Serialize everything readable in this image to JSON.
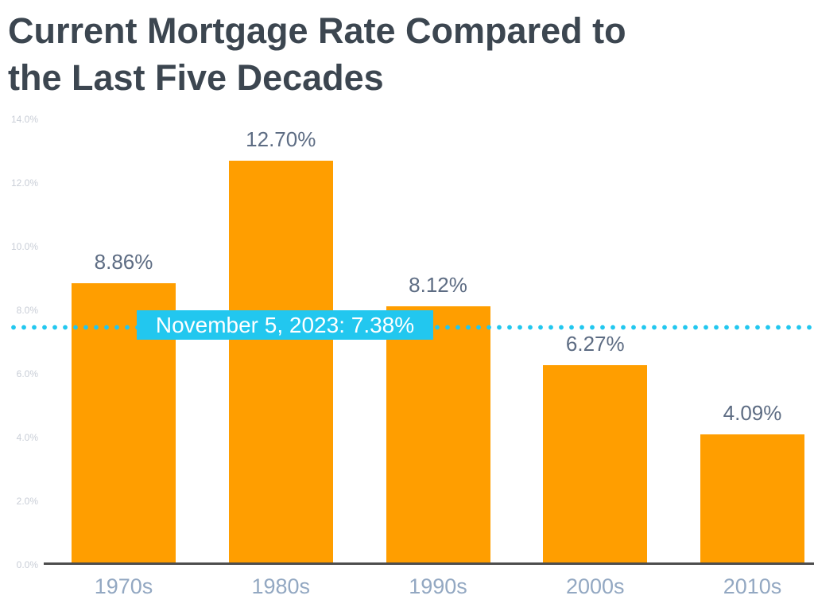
{
  "title": {
    "lines": [
      "Current Mortgage Rate Compared to",
      "the Last Five Decades"
    ]
  },
  "chart_data": {
    "type": "bar",
    "title": "Current Mortgage Rate Compared to the Last Five Decades",
    "categories": [
      "1970s",
      "1980s",
      "1990s",
      "2000s",
      "2010s"
    ],
    "values": [
      8.86,
      12.7,
      8.12,
      6.27,
      4.09
    ],
    "value_labels": [
      "8.86%",
      "12.70%",
      "8.12%",
      "6.27%",
      "4.09%"
    ],
    "xlabel": "",
    "ylabel": "",
    "ylim": [
      0,
      14
    ],
    "yticks": [
      0,
      2,
      4,
      6,
      8,
      10,
      12,
      14
    ],
    "ytick_labels": [
      "0.0%",
      "2.0%",
      "4.0%",
      "6.0%",
      "8.0%",
      "10.0%",
      "12.0%",
      "14.0%"
    ],
    "grid": false,
    "legend": false,
    "reference_line": {
      "value": 7.38,
      "style": "dotted",
      "label": "November 5, 2023: 7.38%"
    },
    "colors": {
      "bar": "#FF9E00",
      "reference": "#22C7EF",
      "reference_text": "#FFFFFF",
      "title": "#3C4650",
      "value_label": "#5D6C83",
      "x_label": "#93A8C2",
      "y_label": "#C9CED7",
      "axis": "#4D4D4D",
      "background": "#FFFFFF"
    }
  }
}
